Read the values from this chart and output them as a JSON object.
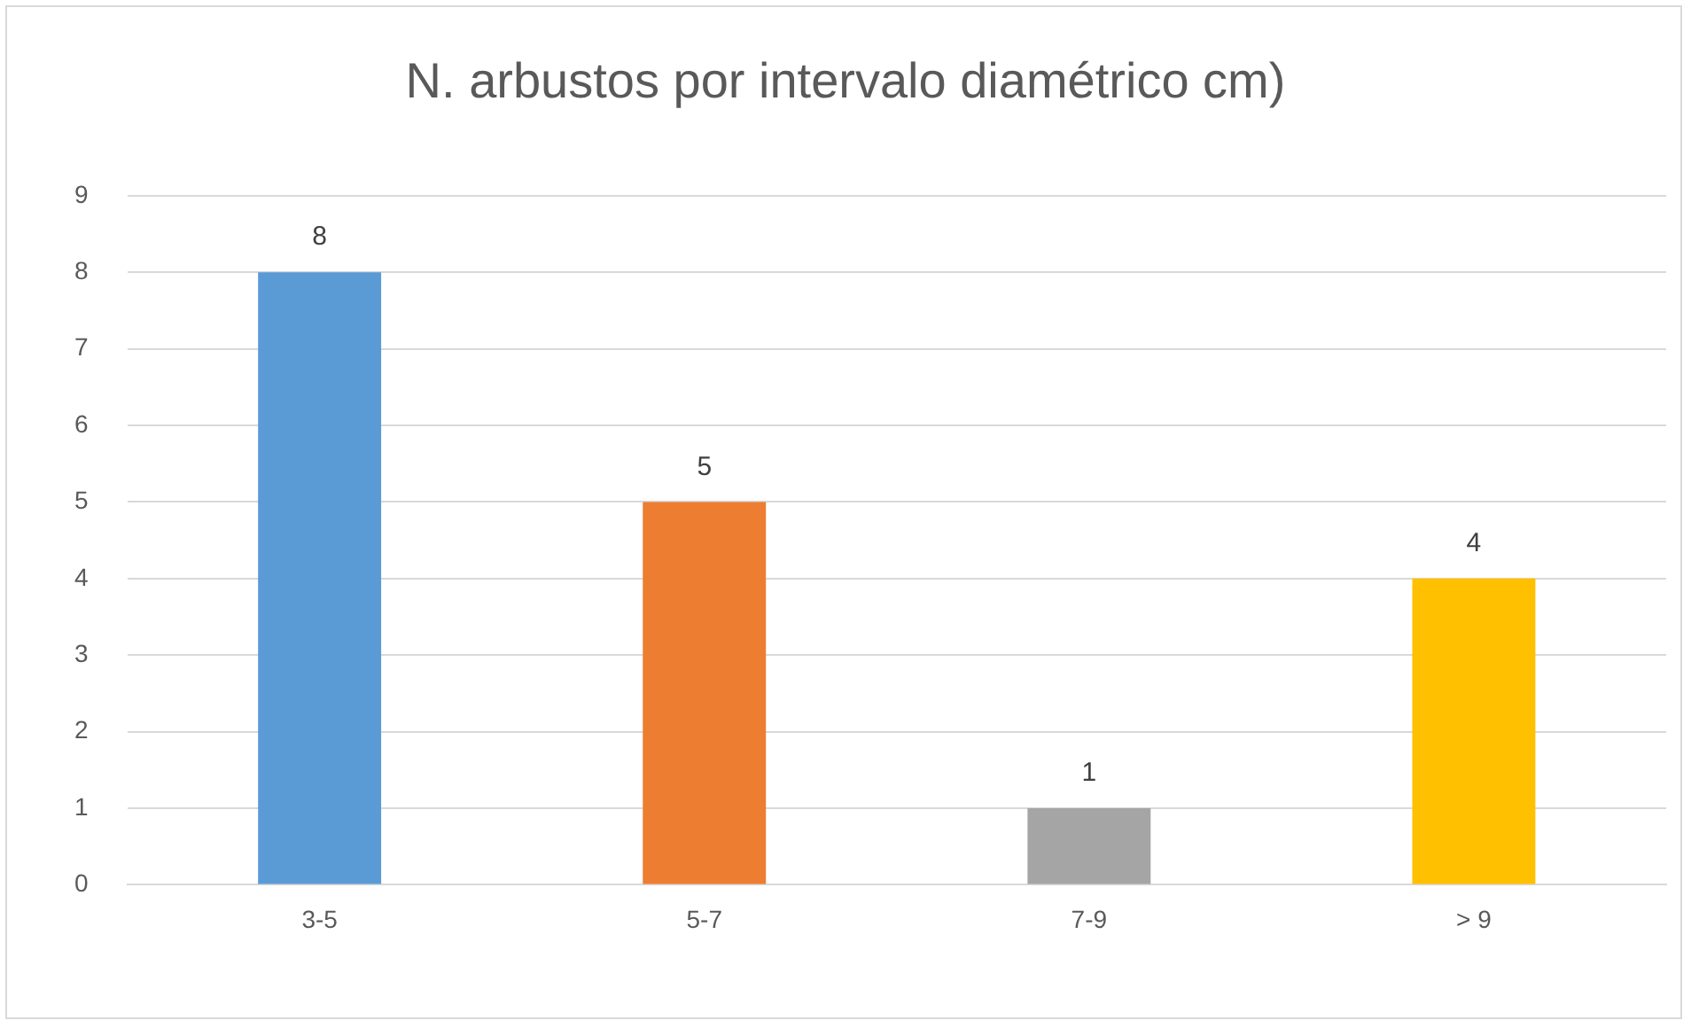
{
  "chart_data": {
    "type": "bar",
    "title": "N. arbustos por intervalo diamétrico cm)",
    "categories": [
      "3-5",
      "5-7",
      "7-9",
      "> 9"
    ],
    "values": [
      8,
      5,
      1,
      4
    ],
    "colors": [
      "#5b9bd5",
      "#ed7d31",
      "#a5a5a5",
      "#ffc000"
    ],
    "ylim": [
      0,
      9
    ],
    "yticks": [
      0,
      1,
      2,
      3,
      4,
      5,
      6,
      7,
      8,
      9
    ],
    "grid": "y",
    "data_labels": true
  }
}
